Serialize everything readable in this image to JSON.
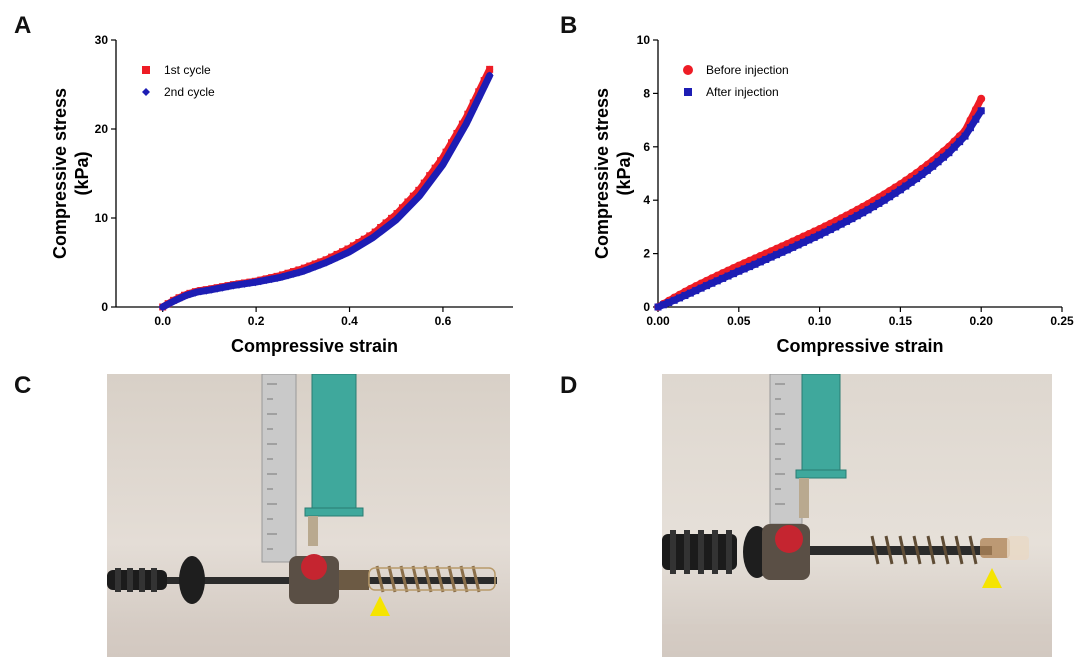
{
  "panels": {
    "a": {
      "letter": "A"
    },
    "b": {
      "letter": "B"
    },
    "c": {
      "letter": "C"
    },
    "d": {
      "letter": "D"
    }
  },
  "colors": {
    "series1": "#ee1c25",
    "series2": "#1d1db4",
    "marker": "#f5e400",
    "background": "#ffffff"
  },
  "chart_data": [
    {
      "type": "scatter",
      "panel": "A",
      "title": "",
      "xlabel": "Compressive strain",
      "ylabel": "Compressive stress (kPa)",
      "ylabel_lines": [
        "Compressive stress",
        "(kPa)"
      ],
      "xlim": [
        -0.1,
        0.75
      ],
      "ylim": [
        0,
        30
      ],
      "xticks": [
        0.0,
        0.2,
        0.4,
        0.6
      ],
      "xtick_labels": [
        "0.0",
        "0.2",
        "0.4",
        "0.6"
      ],
      "yticks": [
        0,
        10,
        20,
        30
      ],
      "ytick_labels": [
        "0",
        "10",
        "20",
        "30"
      ],
      "legend": "top-left",
      "series": [
        {
          "name": "1st cycle",
          "marker": "square",
          "color": "#ee1c25",
          "x": [
            0.0,
            0.025,
            0.05,
            0.075,
            0.1,
            0.15,
            0.2,
            0.25,
            0.3,
            0.35,
            0.4,
            0.45,
            0.5,
            0.55,
            0.6,
            0.65,
            0.7
          ],
          "y": [
            0.0,
            0.8,
            1.4,
            1.8,
            2.0,
            2.5,
            2.9,
            3.5,
            4.3,
            5.3,
            6.6,
            8.2,
            10.4,
            13.2,
            16.8,
            21.3,
            26.7
          ]
        },
        {
          "name": "2nd cycle",
          "marker": "diamond",
          "color": "#1d1db4",
          "x": [
            0.0,
            0.025,
            0.05,
            0.075,
            0.1,
            0.15,
            0.2,
            0.25,
            0.3,
            0.35,
            0.4,
            0.45,
            0.5,
            0.55,
            0.6,
            0.65,
            0.7
          ],
          "y": [
            0.0,
            0.7,
            1.3,
            1.7,
            1.9,
            2.4,
            2.8,
            3.3,
            4.0,
            5.0,
            6.2,
            7.8,
            9.8,
            12.5,
            16.0,
            20.6,
            26.0
          ]
        }
      ]
    },
    {
      "type": "scatter",
      "panel": "B",
      "title": "",
      "xlabel": "Compressive strain",
      "ylabel": "Compressive stress (kPa)",
      "ylabel_lines": [
        "Compressive stress",
        "(kPa)"
      ],
      "xlim": [
        0,
        0.25
      ],
      "ylim": [
        0,
        10
      ],
      "xticks": [
        0.0,
        0.05,
        0.1,
        0.15,
        0.2,
        0.25
      ],
      "xtick_labels": [
        "0.00",
        "0.05",
        "0.10",
        "0.15",
        "0.20",
        "0.25"
      ],
      "yticks": [
        0,
        2,
        4,
        6,
        8,
        10
      ],
      "ytick_labels": [
        "0",
        "2",
        "4",
        "6",
        "8",
        "10"
      ],
      "legend": "top-left",
      "series": [
        {
          "name": "Before injection",
          "marker": "circle",
          "color": "#ee1c25",
          "x": [
            0.0,
            0.01,
            0.02,
            0.03,
            0.04,
            0.05,
            0.06,
            0.07,
            0.08,
            0.09,
            0.1,
            0.11,
            0.12,
            0.13,
            0.14,
            0.15,
            0.16,
            0.17,
            0.18,
            0.19,
            0.2
          ],
          "y": [
            0.0,
            0.35,
            0.68,
            0.98,
            1.27,
            1.55,
            1.82,
            2.09,
            2.36,
            2.64,
            2.92,
            3.22,
            3.53,
            3.86,
            4.22,
            4.6,
            5.02,
            5.48,
            6.0,
            6.6,
            7.8
          ]
        },
        {
          "name": "After injection",
          "marker": "square",
          "color": "#1d1db4",
          "x": [
            0.0,
            0.01,
            0.02,
            0.03,
            0.04,
            0.05,
            0.06,
            0.07,
            0.08,
            0.09,
            0.1,
            0.11,
            0.12,
            0.13,
            0.14,
            0.15,
            0.16,
            0.17,
            0.18,
            0.19,
            0.2
          ],
          "y": [
            0.0,
            0.25,
            0.52,
            0.8,
            1.07,
            1.34,
            1.6,
            1.87,
            2.14,
            2.42,
            2.7,
            3.0,
            3.31,
            3.64,
            4.0,
            4.39,
            4.81,
            5.27,
            5.78,
            6.4,
            7.35
          ]
        }
      ]
    }
  ],
  "photos": {
    "c": {
      "subject": "syringe-device-retracted"
    },
    "d": {
      "subject": "syringe-device-extended"
    }
  }
}
